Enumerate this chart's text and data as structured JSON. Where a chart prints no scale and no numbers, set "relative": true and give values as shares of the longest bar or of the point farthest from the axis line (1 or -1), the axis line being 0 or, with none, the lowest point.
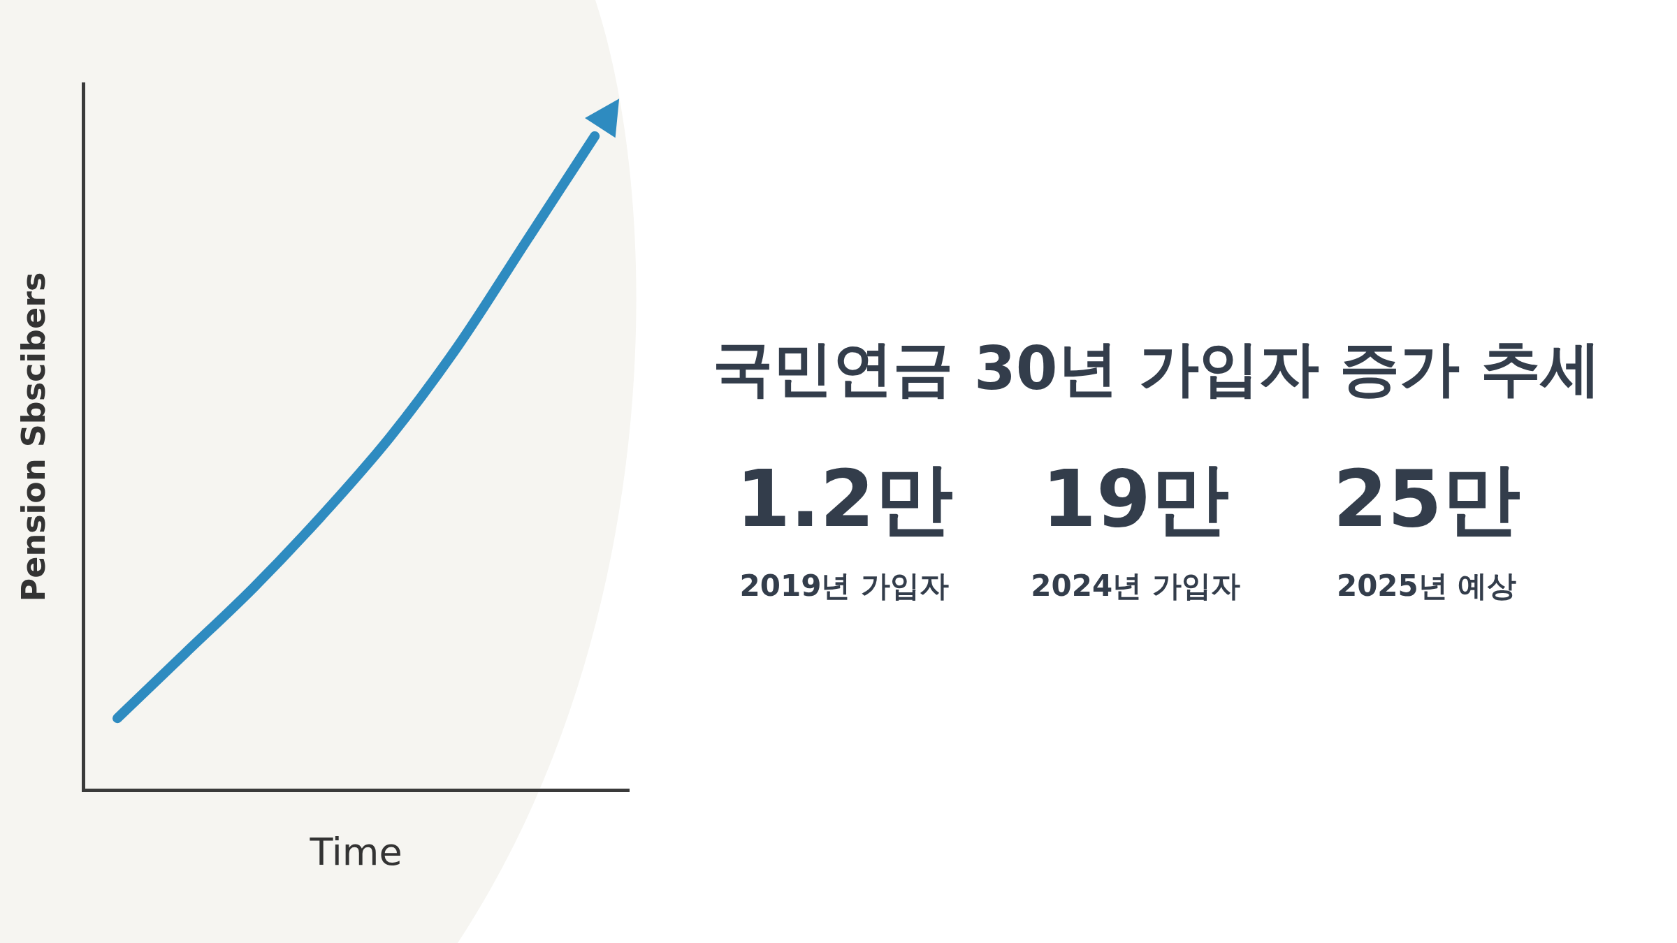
{
  "chart_data": [
    {
      "type": "line",
      "relative": true,
      "xlabel": "Time",
      "ylabel": "Pension Sbscibers",
      "categories": [
        null,
        null,
        null,
        null,
        null,
        null,
        null,
        null
      ],
      "series": [
        {
          "color": "#2e8bc0",
          "values": [
            0.11,
            0.21,
            0.31,
            0.42,
            0.54,
            0.68,
            0.84,
            1
          ]
        }
      ],
      "grid": false,
      "legend": false,
      "marker": "none",
      "line_style": "solid"
    },
    {
      "type": "other",
      "title": "국민연금 30년 가입자 증가 추세",
      "annotations": [
        "1.2만",
        "2019년 가입자",
        "19만",
        "2024년 가입자",
        "25만",
        "2025년 예상"
      ]
    }
  ]
}
